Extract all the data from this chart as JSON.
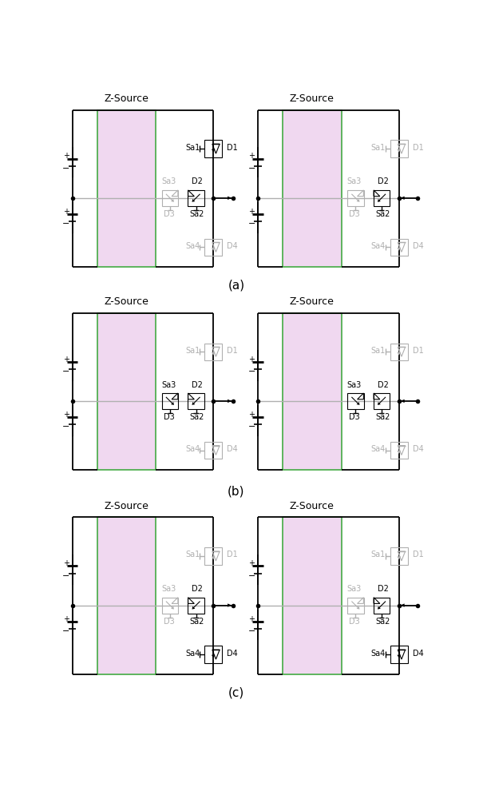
{
  "bg_color": "#ffffff",
  "zsource_fill": "#f0d8f0",
  "zsource_stroke": "#44aa44",
  "black": "#000000",
  "gray": "#b0b0b0",
  "font_size": 7.0,
  "label_font_size": 10,
  "row_labels": [
    "(a)",
    "(b)",
    "(c)"
  ],
  "panels": [
    {
      "col": 0,
      "row": 0,
      "sa1": true,
      "sa4": false,
      "sa3": false,
      "sa2": true,
      "d1": true,
      "d4": false,
      "d3": false,
      "d2": true,
      "arrow_right": true
    },
    {
      "col": 1,
      "row": 0,
      "sa1": false,
      "sa4": false,
      "sa3": false,
      "sa2": true,
      "d1": false,
      "d4": false,
      "d3": false,
      "d2": true,
      "arrow_right": false
    },
    {
      "col": 0,
      "row": 1,
      "sa1": false,
      "sa4": false,
      "sa3": true,
      "sa2": true,
      "d1": false,
      "d4": false,
      "d3": true,
      "d2": true,
      "arrow_right": true
    },
    {
      "col": 1,
      "row": 1,
      "sa1": false,
      "sa4": false,
      "sa3": true,
      "sa2": true,
      "d1": false,
      "d4": false,
      "d3": true,
      "d2": true,
      "arrow_right": false
    },
    {
      "col": 0,
      "row": 2,
      "sa1": false,
      "sa4": true,
      "sa3": false,
      "sa2": true,
      "d1": false,
      "d4": true,
      "d3": false,
      "d2": true,
      "arrow_right": true
    },
    {
      "col": 1,
      "row": 2,
      "sa1": false,
      "sa4": true,
      "sa3": false,
      "sa2": true,
      "d1": false,
      "d4": true,
      "d3": false,
      "d2": true,
      "arrow_right": false
    }
  ]
}
